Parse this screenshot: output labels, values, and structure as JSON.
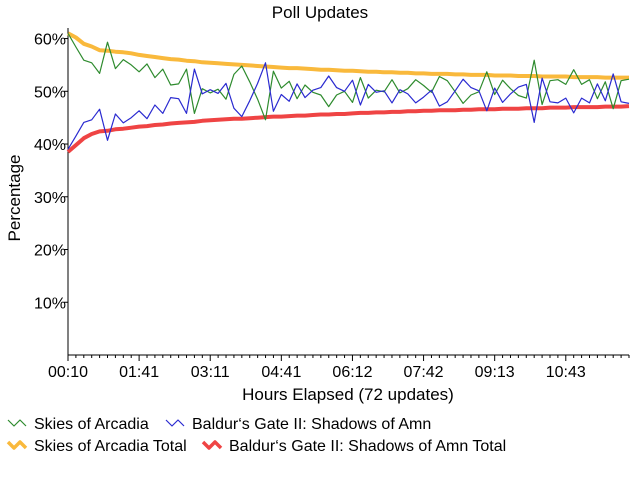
{
  "chart_data": {
    "type": "line",
    "title": "Poll Updates",
    "xlabel": "Hours Elapsed (72 updates)",
    "ylabel": "Percentage",
    "ylim": [
      0,
      0.62
    ],
    "yticks": [
      0.1,
      0.2,
      0.3,
      0.4,
      0.5,
      0.6
    ],
    "ytick_labels": [
      "10%",
      "20%",
      "30%",
      "40%",
      "50%",
      "60%"
    ],
    "xtick_labels": [
      "00:10",
      "01:41",
      "03:11",
      "04:41",
      "06:12",
      "07:42",
      "09:13",
      "10:43"
    ],
    "grid": false,
    "legend_position": "bottom",
    "colors": {
      "Skies of Arcadia": "#2e8b2e",
      "Baldur's Gate II: Shadows of Amn": "#2a2ad0",
      "Skies of Arcadia Total": "#f9b93c",
      "Baldur's Gate II: Shadows of Amn Total": "#ef4444"
    },
    "series": [
      {
        "name": "Skies of Arcadia",
        "values": [
          0.61,
          0.584,
          0.559,
          0.554,
          0.534,
          0.593,
          0.543,
          0.56,
          0.55,
          0.537,
          0.552,
          0.526,
          0.542,
          0.512,
          0.514,
          0.542,
          0.458,
          0.505,
          0.497,
          0.504,
          0.485,
          0.532,
          0.548,
          0.518,
          0.485,
          0.446,
          0.538,
          0.506,
          0.519,
          0.486,
          0.512,
          0.498,
          0.493,
          0.471,
          0.493,
          0.5,
          0.479,
          0.526,
          0.487,
          0.502,
          0.499,
          0.522,
          0.497,
          0.505,
          0.522,
          0.511,
          0.498,
          0.528,
          0.52,
          0.499,
          0.477,
          0.493,
          0.499,
          0.537,
          0.494,
          0.521,
          0.505,
          0.492,
          0.487,
          0.559,
          0.475,
          0.52,
          0.522,
          0.513,
          0.541,
          0.513,
          0.522,
          0.486,
          0.518,
          0.467,
          0.52,
          0.523
        ]
      },
      {
        "name": "Baldur's Gate II: Shadows of Amn",
        "values": [
          0.39,
          0.415,
          0.441,
          0.446,
          0.466,
          0.407,
          0.457,
          0.44,
          0.45,
          0.463,
          0.448,
          0.474,
          0.458,
          0.488,
          0.486,
          0.458,
          0.542,
          0.495,
          0.503,
          0.496,
          0.515,
          0.468,
          0.452,
          0.482,
          0.515,
          0.554,
          0.462,
          0.494,
          0.481,
          0.514,
          0.488,
          0.502,
          0.507,
          0.529,
          0.507,
          0.5,
          0.521,
          0.474,
          0.513,
          0.498,
          0.501,
          0.478,
          0.503,
          0.495,
          0.478,
          0.489,
          0.502,
          0.472,
          0.48,
          0.501,
          0.523,
          0.507,
          0.501,
          0.463,
          0.506,
          0.479,
          0.495,
          0.508,
          0.513,
          0.441,
          0.525,
          0.48,
          0.478,
          0.487,
          0.459,
          0.487,
          0.478,
          0.514,
          0.482,
          0.533,
          0.48,
          0.477
        ]
      },
      {
        "name": "Skies of Arcadia Total",
        "values": [
          0.61,
          0.602,
          0.59,
          0.585,
          0.578,
          0.577,
          0.575,
          0.574,
          0.572,
          0.569,
          0.567,
          0.565,
          0.563,
          0.561,
          0.56,
          0.558,
          0.557,
          0.555,
          0.554,
          0.553,
          0.552,
          0.551,
          0.55,
          0.549,
          0.548,
          0.547,
          0.546,
          0.545,
          0.544,
          0.544,
          0.543,
          0.542,
          0.541,
          0.541,
          0.54,
          0.539,
          0.539,
          0.538,
          0.537,
          0.537,
          0.536,
          0.536,
          0.535,
          0.535,
          0.534,
          0.534,
          0.533,
          0.533,
          0.533,
          0.532,
          0.532,
          0.531,
          0.531,
          0.531,
          0.53,
          0.53,
          0.53,
          0.529,
          0.529,
          0.529,
          0.528,
          0.528,
          0.528,
          0.528,
          0.527,
          0.527,
          0.527,
          0.527,
          0.526,
          0.526,
          0.526,
          0.526
        ]
      },
      {
        "name": "Baldur's Gate II: Shadows of Amn Total",
        "values": [
          0.385,
          0.398,
          0.411,
          0.419,
          0.424,
          0.425,
          0.428,
          0.429,
          0.431,
          0.433,
          0.434,
          0.436,
          0.437,
          0.439,
          0.44,
          0.441,
          0.442,
          0.444,
          0.445,
          0.446,
          0.447,
          0.448,
          0.448,
          0.449,
          0.45,
          0.451,
          0.452,
          0.452,
          0.453,
          0.454,
          0.454,
          0.455,
          0.456,
          0.456,
          0.457,
          0.457,
          0.458,
          0.459,
          0.459,
          0.46,
          0.46,
          0.461,
          0.461,
          0.462,
          0.462,
          0.463,
          0.463,
          0.464,
          0.464,
          0.464,
          0.465,
          0.465,
          0.466,
          0.466,
          0.466,
          0.467,
          0.467,
          0.467,
          0.468,
          0.468,
          0.468,
          0.469,
          0.469,
          0.469,
          0.47,
          0.47,
          0.47,
          0.47,
          0.471,
          0.471,
          0.471,
          0.472
        ]
      }
    ],
    "legend": [
      {
        "label": "Skies of Arcadia",
        "color": "#2e8b2e"
      },
      {
        "label": "Baldur‘s Gate II: Shadows of Amn",
        "color": "#2a2ad0"
      },
      {
        "label": "Skies of Arcadia Total",
        "color": "#f9b93c"
      },
      {
        "label": "Baldur‘s Gate II: Shadows of Amn Total",
        "color": "#ef4444"
      }
    ]
  }
}
